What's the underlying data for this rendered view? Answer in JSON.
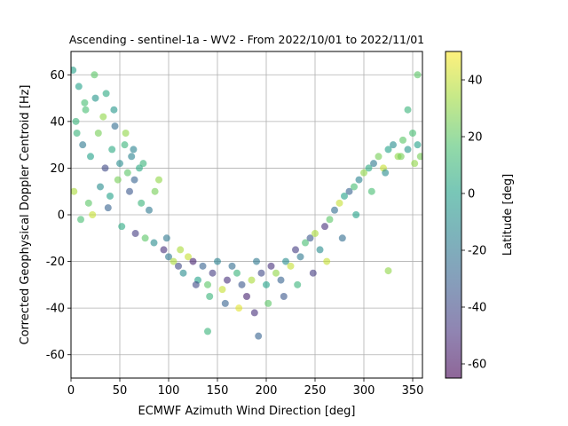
{
  "chart_data": {
    "type": "scatter",
    "title": "Ascending - sentinel-1a - WV2 - From 2022/10/01 to 2022/11/01",
    "xlabel": "ECMWF Azimuth Wind Direction [deg]",
    "ylabel": "Corrected Geophysical Doppler Centroid [Hz]",
    "xlim": [
      0,
      360
    ],
    "ylim": [
      -70,
      70
    ],
    "xticks": [
      0,
      50,
      100,
      150,
      200,
      250,
      300,
      350
    ],
    "yticks": [
      -60,
      -40,
      -20,
      0,
      20,
      40,
      60
    ],
    "grid": true,
    "colormap": "viridis",
    "marker_alpha": 0.6,
    "colorbar": {
      "label": "Latitude [deg]",
      "range": [
        -65,
        50
      ],
      "ticks": [
        -60,
        -40,
        -20,
        0,
        20,
        40
      ]
    },
    "series": [
      {
        "x": [
          5,
          12,
          20,
          28,
          35,
          42,
          50,
          58,
          65,
          8,
          15,
          25,
          33,
          45,
          55,
          62,
          70,
          3,
          18,
          30,
          40,
          48,
          60,
          72,
          80,
          10,
          22,
          38,
          52,
          66,
          76,
          85,
          90,
          95,
          100,
          105,
          110,
          115,
          120,
          125,
          130,
          135,
          140,
          145,
          150,
          155,
          160,
          165,
          170,
          175,
          180,
          185,
          190,
          195,
          200,
          205,
          210,
          215,
          220,
          225,
          230,
          235,
          240,
          245,
          250,
          255,
          260,
          265,
          270,
          275,
          280,
          285,
          290,
          295,
          300,
          305,
          310,
          315,
          320,
          325,
          330,
          335,
          340,
          345,
          350,
          355,
          358,
          2,
          6,
          14,
          24,
          36,
          44,
          56,
          64,
          74,
          86,
          98,
          112,
          128,
          142,
          158,
          172,
          188,
          202,
          218,
          232,
          248,
          262,
          278,
          292,
          308,
          322,
          338,
          352,
          140,
          192,
          325,
          345,
          355
        ],
        "y": [
          40,
          30,
          25,
          35,
          20,
          28,
          22,
          18,
          15,
          55,
          45,
          50,
          42,
          38,
          30,
          25,
          20,
          10,
          5,
          12,
          8,
          15,
          10,
          5,
          2,
          -2,
          0,
          3,
          -5,
          -8,
          -10,
          -12,
          15,
          -15,
          -18,
          -20,
          -22,
          -25,
          -18,
          -20,
          -28,
          -22,
          -30,
          -25,
          -20,
          -32,
          -28,
          -22,
          -25,
          -30,
          -35,
          -28,
          -20,
          -25,
          -30,
          -22,
          -25,
          -28,
          -20,
          -22,
          -15,
          -18,
          -12,
          -10,
          -8,
          -15,
          -5,
          -2,
          2,
          5,
          8,
          10,
          12,
          15,
          18,
          20,
          22,
          25,
          20,
          28,
          30,
          25,
          32,
          28,
          35,
          30,
          25,
          62,
          35,
          48,
          60,
          52,
          45,
          35,
          28,
          22,
          10,
          -10,
          -15,
          -30,
          -35,
          -38,
          -40,
          -42,
          -38,
          -35,
          -30,
          -25,
          -20,
          -10,
          0,
          10,
          18,
          25,
          22,
          -50,
          -52,
          -24,
          45,
          60
        ],
        "c": [
          10,
          -20,
          0,
          25,
          -40,
          5,
          -10,
          20,
          -30,
          0,
          15,
          -5,
          30,
          -25,
          10,
          -15,
          5,
          35,
          20,
          -10,
          0,
          25,
          -35,
          10,
          -20,
          15,
          40,
          -30,
          5,
          -45,
          20,
          -10,
          30,
          -50,
          -20,
          35,
          -40,
          -10,
          40,
          -55,
          0,
          -30,
          20,
          -45,
          -15,
          40,
          -50,
          -25,
          10,
          -35,
          -55,
          35,
          -20,
          -40,
          0,
          -50,
          30,
          -30,
          -10,
          40,
          -45,
          -20,
          15,
          -35,
          35,
          -10,
          -50,
          20,
          -25,
          40,
          0,
          -30,
          15,
          -15,
          30,
          5,
          -20,
          25,
          40,
          0,
          -10,
          30,
          20,
          -5,
          15,
          0,
          25,
          0,
          10,
          15,
          20,
          5,
          -5,
          30,
          -15,
          10,
          25,
          -20,
          35,
          -40,
          10,
          -30,
          45,
          -50,
          20,
          -35,
          10,
          -45,
          40,
          -25,
          0,
          15,
          -10,
          25,
          30,
          10,
          -30,
          30,
          10,
          20
        ]
      }
    ]
  }
}
